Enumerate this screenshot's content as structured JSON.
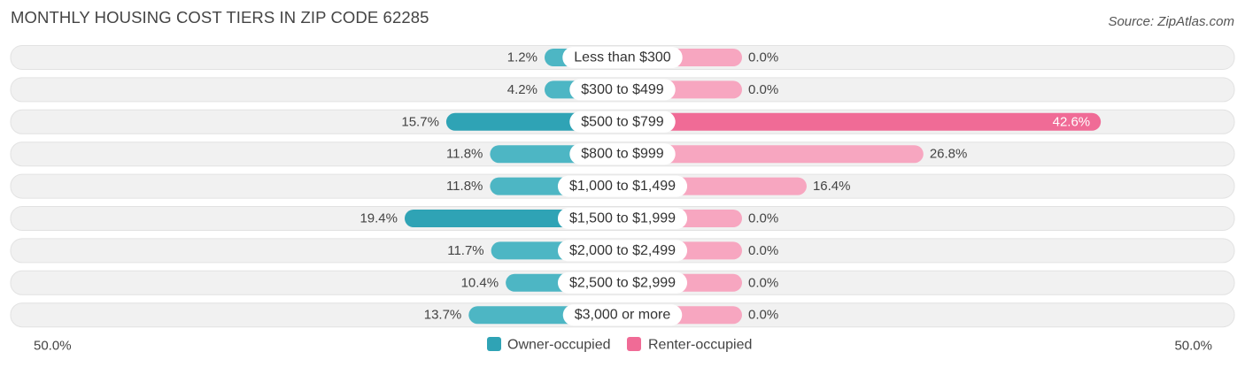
{
  "title": "MONTHLY HOUSING COST TIERS IN ZIP CODE 62285",
  "source": "Source: ZipAtlas.com",
  "colors": {
    "owner": "#4db6c4",
    "owner_strong": "#2fa3b5",
    "renter": "#f7a6c0",
    "renter_strong": "#f06b96",
    "row_bg": "#f1f1f1"
  },
  "chart_data": {
    "type": "bar",
    "orientation": "horizontal-diverging",
    "categories": [
      "Less than $300",
      "$300 to $499",
      "$500 to $799",
      "$800 to $999",
      "$1,000 to $1,499",
      "$1,500 to $1,999",
      "$2,000 to $2,499",
      "$2,500 to $2,999",
      "$3,000 or more"
    ],
    "series": [
      {
        "name": "Owner-occupied",
        "values": [
          1.2,
          4.2,
          15.7,
          11.8,
          11.8,
          19.4,
          11.7,
          10.4,
          13.7
        ]
      },
      {
        "name": "Renter-occupied",
        "values": [
          0.0,
          0.0,
          42.6,
          26.8,
          16.4,
          0.0,
          0.0,
          0.0,
          0.0
        ]
      }
    ],
    "value_labels": {
      "owner": [
        "1.2%",
        "4.2%",
        "15.7%",
        "11.8%",
        "11.8%",
        "19.4%",
        "11.7%",
        "10.4%",
        "13.7%"
      ],
      "renter": [
        "0.0%",
        "0.0%",
        "42.6%",
        "26.8%",
        "16.4%",
        "0.0%",
        "0.0%",
        "0.0%",
        "0.0%"
      ]
    },
    "axis": {
      "left_label": "50.0%",
      "right_label": "50.0%",
      "range": [
        0,
        50
      ]
    },
    "legend": {
      "placement": "bottom-center",
      "items": [
        "Owner-occupied",
        "Renter-occupied"
      ]
    }
  }
}
